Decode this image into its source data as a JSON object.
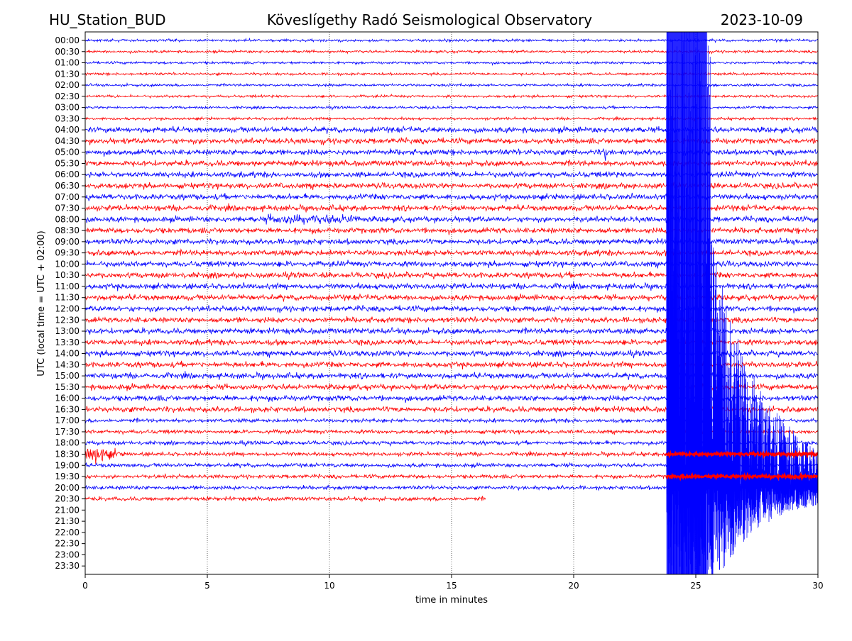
{
  "header": {
    "station": "HU_Station_BUD",
    "title": "Köveslígethy Radó Seismological Observatory",
    "date": "2023-10-09"
  },
  "chart_data": {
    "type": "line",
    "title": "Köveslígethy Radó Seismological Observatory",
    "xlabel": "time in minutes",
    "ylabel": "UTC (local time = UTC + 02:00)",
    "xlim": [
      0,
      30
    ],
    "xticks": [
      "0",
      "5",
      "10",
      "15",
      "20",
      "25",
      "30"
    ],
    "grid": "vertical dotted",
    "row_labels": [
      "00:00",
      "00:30",
      "01:00",
      "01:30",
      "02:00",
      "02:30",
      "03:00",
      "03:30",
      "04:00",
      "04:30",
      "05:00",
      "05:30",
      "06:00",
      "06:30",
      "07:00",
      "07:30",
      "08:00",
      "08:30",
      "09:00",
      "09:30",
      "10:00",
      "10:30",
      "11:00",
      "11:30",
      "12:00",
      "12:30",
      "13:00",
      "13:30",
      "14:00",
      "14:30",
      "15:00",
      "15:30",
      "16:00",
      "16:30",
      "17:00",
      "17:30",
      "18:00",
      "18:30",
      "19:00",
      "19:30",
      "20:00",
      "20:30",
      "21:00",
      "21:30",
      "22:00",
      "22:30",
      "23:00",
      "23:30"
    ],
    "row_colors": [
      "#0000ff",
      "#ff0000"
    ],
    "last_row_with_data": "20:30",
    "last_row_end_minute": 16.4,
    "event_start_minute": 23.8,
    "event_strong_end_minute": 25.6
  }
}
